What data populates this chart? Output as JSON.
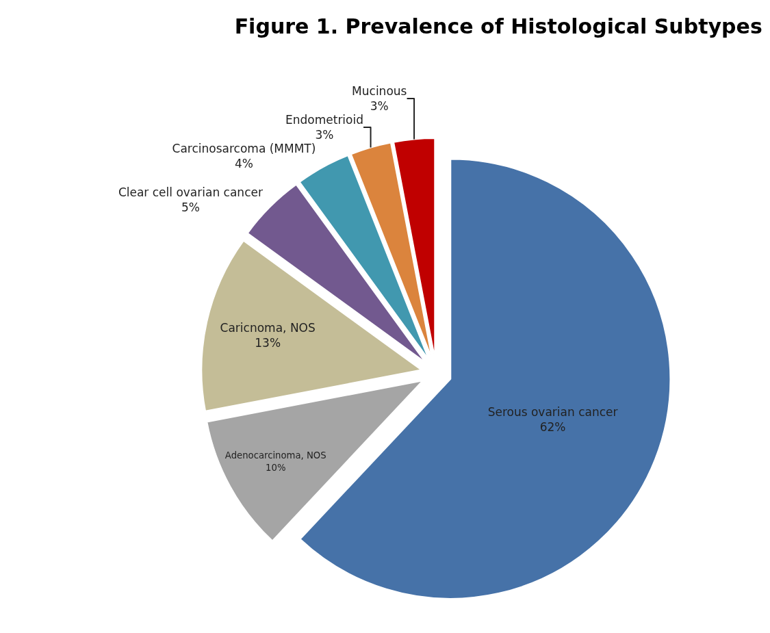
{
  "chart_data": {
    "type": "pie",
    "title": "Figure 1. Prevalence of Histological Subtypes",
    "categories": [
      "Serous ovarian cancer",
      "Adenocarcinoma, NOS",
      "Caricnoma, NOS",
      "Clear cell ovarian cancer",
      "Carcinosarcoma (MMMT)",
      "Endometrioid",
      "Mucinous"
    ],
    "values": [
      62,
      10,
      13,
      5,
      4,
      3,
      3
    ],
    "value_labels": [
      "62%",
      "10%",
      "13%",
      "5%",
      "4%",
      "3%",
      "3%"
    ],
    "colors": [
      "#4672a8",
      "#a5a5a5",
      "#c4bd97",
      "#72598f",
      "#4198af",
      "#db843d",
      "#c00000"
    ],
    "legend": false
  }
}
